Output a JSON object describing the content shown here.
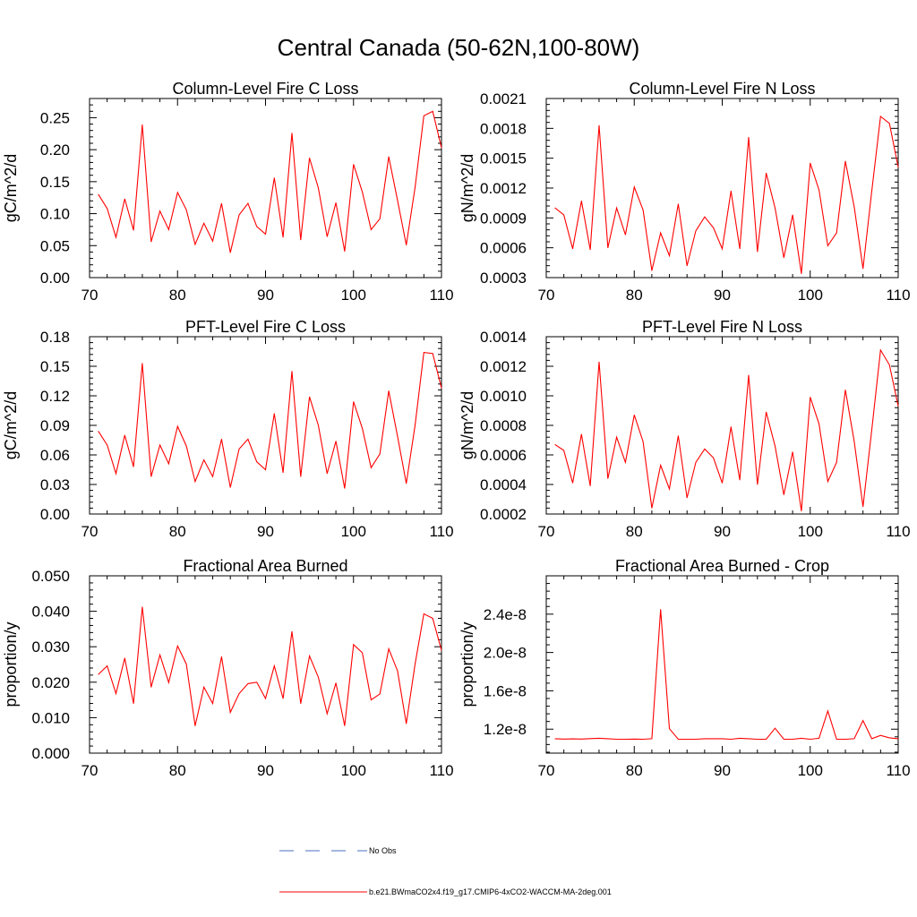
{
  "figure": {
    "title": "Central Canada (50-62N,100-80W)"
  },
  "legend": [
    {
      "label": "No Obs",
      "color": "#4a6fc0",
      "dash": true
    },
    {
      "label": "b.e21.BWmaCO2x4.f19_g17.CMIP6-4xCO2-WACCM-MA-2deg.001",
      "color": "#ff0000",
      "dash": false
    }
  ],
  "chart_data": [
    {
      "type": "line",
      "title": "Column-Level Fire C Loss",
      "xlabel": "",
      "ylabel": "gC/m^2/d",
      "xlim": [
        70,
        110
      ],
      "ylim": [
        0,
        0.28
      ],
      "xticks": [
        70,
        80,
        90,
        100,
        110
      ],
      "xtick_labels": [
        "70",
        "80",
        "90",
        "100",
        "110"
      ],
      "yticks": [
        0,
        0.05,
        0.1,
        0.15,
        0.2,
        0.25
      ],
      "ytick_labels": [
        "0.00",
        "0.05",
        "0.10",
        "0.15",
        "0.20",
        "0.25"
      ],
      "x": [
        71,
        72,
        73,
        74,
        75,
        76,
        77,
        78,
        79,
        80,
        81,
        82,
        83,
        84,
        85,
        86,
        87,
        88,
        89,
        90,
        91,
        92,
        93,
        94,
        95,
        96,
        97,
        98,
        99,
        100,
        101,
        102,
        103,
        104,
        105,
        106,
        107,
        108,
        109,
        110
      ],
      "series": [
        {
          "color": "#ff0000",
          "values": [
            0.13,
            0.108,
            0.063,
            0.123,
            0.074,
            0.239,
            0.056,
            0.104,
            0.075,
            0.133,
            0.106,
            0.052,
            0.085,
            0.057,
            0.116,
            0.039,
            0.098,
            0.116,
            0.08,
            0.068,
            0.156,
            0.063,
            0.226,
            0.059,
            0.187,
            0.14,
            0.064,
            0.117,
            0.041,
            0.177,
            0.134,
            0.075,
            0.092,
            0.189,
            0.121,
            0.051,
            0.141,
            0.253,
            0.26,
            0.203
          ]
        }
      ]
    },
    {
      "type": "line",
      "title": "Column-Level Fire N Loss",
      "xlabel": "",
      "ylabel": "gN/m^2/d",
      "xlim": [
        70,
        110
      ],
      "ylim": [
        0.0003,
        0.0021
      ],
      "xticks": [
        70,
        80,
        90,
        100,
        110
      ],
      "xtick_labels": [
        "70",
        "80",
        "90",
        "100",
        "110"
      ],
      "yticks": [
        0.0003,
        0.0006,
        0.0009,
        0.0012,
        0.0015,
        0.0018,
        0.0021
      ],
      "ytick_labels": [
        "0.0003",
        "0.0006",
        "0.0009",
        "0.0012",
        "0.0015",
        "0.0018",
        "0.0021"
      ],
      "x": [
        71,
        72,
        73,
        74,
        75,
        76,
        77,
        78,
        79,
        80,
        81,
        82,
        83,
        84,
        85,
        86,
        87,
        88,
        89,
        90,
        91,
        92,
        93,
        94,
        95,
        96,
        97,
        98,
        99,
        100,
        101,
        102,
        103,
        104,
        105,
        106,
        107,
        108,
        109,
        110
      ],
      "series": [
        {
          "color": "#ff0000",
          "values": [
            0.001,
            0.00093,
            0.00059,
            0.00107,
            0.00058,
            0.00183,
            0.0006,
            0.001,
            0.00073,
            0.00121,
            0.00098,
            0.00037,
            0.00075,
            0.00052,
            0.00104,
            0.00042,
            0.00077,
            0.00091,
            0.0008,
            0.00059,
            0.00117,
            0.00059,
            0.00171,
            0.00056,
            0.00135,
            0.001,
            0.0005,
            0.00093,
            0.00034,
            0.00145,
            0.00118,
            0.00062,
            0.00075,
            0.00147,
            0.00101,
            0.00039,
            0.00117,
            0.00192,
            0.00185,
            0.00141
          ]
        }
      ]
    },
    {
      "type": "line",
      "title": "PFT-Level Fire C Loss",
      "xlabel": "",
      "ylabel": "gC/m^2/d",
      "xlim": [
        70,
        110
      ],
      "ylim": [
        0,
        0.18
      ],
      "xticks": [
        70,
        80,
        90,
        100,
        110
      ],
      "xtick_labels": [
        "70",
        "80",
        "90",
        "100",
        "110"
      ],
      "yticks": [
        0,
        0.03,
        0.06,
        0.09,
        0.12,
        0.15,
        0.18
      ],
      "ytick_labels": [
        "0.00",
        "0.03",
        "0.06",
        "0.09",
        "0.12",
        "0.15",
        "0.18"
      ],
      "x": [
        71,
        72,
        73,
        74,
        75,
        76,
        77,
        78,
        79,
        80,
        81,
        82,
        83,
        84,
        85,
        86,
        87,
        88,
        89,
        90,
        91,
        92,
        93,
        94,
        95,
        96,
        97,
        98,
        99,
        100,
        101,
        102,
        103,
        104,
        105,
        106,
        107,
        108,
        109,
        110
      ],
      "series": [
        {
          "color": "#ff0000",
          "values": [
            0.084,
            0.07,
            0.041,
            0.08,
            0.048,
            0.153,
            0.038,
            0.07,
            0.051,
            0.089,
            0.069,
            0.033,
            0.055,
            0.038,
            0.076,
            0.027,
            0.066,
            0.076,
            0.053,
            0.045,
            0.102,
            0.042,
            0.145,
            0.038,
            0.119,
            0.09,
            0.041,
            0.074,
            0.026,
            0.114,
            0.087,
            0.047,
            0.061,
            0.125,
            0.079,
            0.031,
            0.09,
            0.164,
            0.163,
            0.128
          ]
        }
      ]
    },
    {
      "type": "line",
      "title": "PFT-Level Fire N Loss",
      "xlabel": "",
      "ylabel": "gN/m^2/d",
      "xlim": [
        70,
        110
      ],
      "ylim": [
        0.0002,
        0.0014
      ],
      "xticks": [
        70,
        80,
        90,
        100,
        110
      ],
      "xtick_labels": [
        "70",
        "80",
        "90",
        "100",
        "110"
      ],
      "yticks": [
        0.0002,
        0.0004,
        0.0006,
        0.0008,
        0.001,
        0.0012,
        0.0014
      ],
      "ytick_labels": [
        "0.0002",
        "0.0004",
        "0.0006",
        "0.0008",
        "0.0010",
        "0.0012",
        "0.0014"
      ],
      "x": [
        71,
        72,
        73,
        74,
        75,
        76,
        77,
        78,
        79,
        80,
        81,
        82,
        83,
        84,
        85,
        86,
        87,
        88,
        89,
        90,
        91,
        92,
        93,
        94,
        95,
        96,
        97,
        98,
        99,
        100,
        101,
        102,
        103,
        104,
        105,
        106,
        107,
        108,
        109,
        110
      ],
      "series": [
        {
          "color": "#ff0000",
          "values": [
            0.00067,
            0.00063,
            0.00041,
            0.00074,
            0.00039,
            0.00123,
            0.00044,
            0.00072,
            0.00055,
            0.00087,
            0.00069,
            0.00024,
            0.00053,
            0.00037,
            0.00073,
            0.00031,
            0.00055,
            0.00064,
            0.00058,
            0.00041,
            0.00079,
            0.00043,
            0.00114,
            0.0004,
            0.00089,
            0.00066,
            0.00033,
            0.00062,
            0.00022,
            0.00099,
            0.00081,
            0.00042,
            0.00055,
            0.00104,
            0.00069,
            0.00025,
            0.00077,
            0.00131,
            0.00121,
            0.00093
          ]
        }
      ]
    },
    {
      "type": "line",
      "title": "Fractional Area Burned",
      "xlabel": "",
      "ylabel": "proportion/y",
      "xlim": [
        70,
        110
      ],
      "ylim": [
        0,
        0.05
      ],
      "xticks": [
        70,
        80,
        90,
        100,
        110
      ],
      "xtick_labels": [
        "70",
        "80",
        "90",
        "100",
        "110"
      ],
      "yticks": [
        0,
        0.01,
        0.02,
        0.03,
        0.04,
        0.05
      ],
      "ytick_labels": [
        "0.000",
        "0.010",
        "0.020",
        "0.030",
        "0.040",
        "0.050"
      ],
      "x": [
        71,
        72,
        73,
        74,
        75,
        76,
        77,
        78,
        79,
        80,
        81,
        82,
        83,
        84,
        85,
        86,
        87,
        88,
        89,
        90,
        91,
        92,
        93,
        94,
        95,
        96,
        97,
        98,
        99,
        100,
        101,
        102,
        103,
        104,
        105,
        106,
        107,
        108,
        109,
        110
      ],
      "series": [
        {
          "color": "#ff0000",
          "values": [
            0.0222,
            0.0246,
            0.0168,
            0.0268,
            0.014,
            0.0412,
            0.0186,
            0.0277,
            0.0199,
            0.0302,
            0.0251,
            0.0077,
            0.0186,
            0.014,
            0.0272,
            0.0115,
            0.0168,
            0.0196,
            0.02,
            0.0154,
            0.0246,
            0.0154,
            0.0343,
            0.014,
            0.0274,
            0.0214,
            0.0111,
            0.0198,
            0.0077,
            0.0306,
            0.0283,
            0.015,
            0.0167,
            0.0294,
            0.0232,
            0.0083,
            0.0251,
            0.0393,
            0.038,
            0.029
          ]
        }
      ]
    },
    {
      "type": "line",
      "title": "Fractional Area Burned - Crop",
      "xlabel": "",
      "ylabel": "proportion/y",
      "xlim": [
        70,
        110
      ],
      "ylim": [
        9.5e-09,
        2.8e-08
      ],
      "xticks": [
        70,
        80,
        90,
        100,
        110
      ],
      "xtick_labels": [
        "70",
        "80",
        "90",
        "100",
        "110"
      ],
      "yticks": [
        1.2e-08,
        1.6e-08,
        2e-08,
        2.4e-08
      ],
      "ytick_labels": [
        "1.2e-8",
        "1.6e-8",
        "2.0e-8",
        "2.4e-8"
      ],
      "x": [
        71,
        72,
        73,
        74,
        75,
        76,
        77,
        78,
        79,
        80,
        81,
        82,
        83,
        84,
        85,
        86,
        87,
        88,
        89,
        90,
        91,
        92,
        93,
        94,
        95,
        96,
        97,
        98,
        99,
        100,
        101,
        102,
        103,
        104,
        105,
        106,
        107,
        108,
        109,
        110
      ],
      "series": [
        {
          "color": "#ff0000",
          "values": [
            1.1e-08,
            1.097e-08,
            1.099e-08,
            1.097e-08,
            1.101e-08,
            1.105e-08,
            1.1e-08,
            1.095e-08,
            1.095e-08,
            1.097e-08,
            1.095e-08,
            1.1e-08,
            2.45e-08,
            1.205e-08,
            1.095e-08,
            1.095e-08,
            1.095e-08,
            1.1e-08,
            1.1e-08,
            1.1e-08,
            1.095e-08,
            1.105e-08,
            1.1e-08,
            1.095e-08,
            1.095e-08,
            1.21e-08,
            1.095e-08,
            1.095e-08,
            1.105e-08,
            1.095e-08,
            1.105e-08,
            1.39e-08,
            1.095e-08,
            1.095e-08,
            1.1e-08,
            1.29e-08,
            1.1e-08,
            1.135e-08,
            1.11e-08,
            1.1e-08
          ]
        }
      ]
    }
  ]
}
